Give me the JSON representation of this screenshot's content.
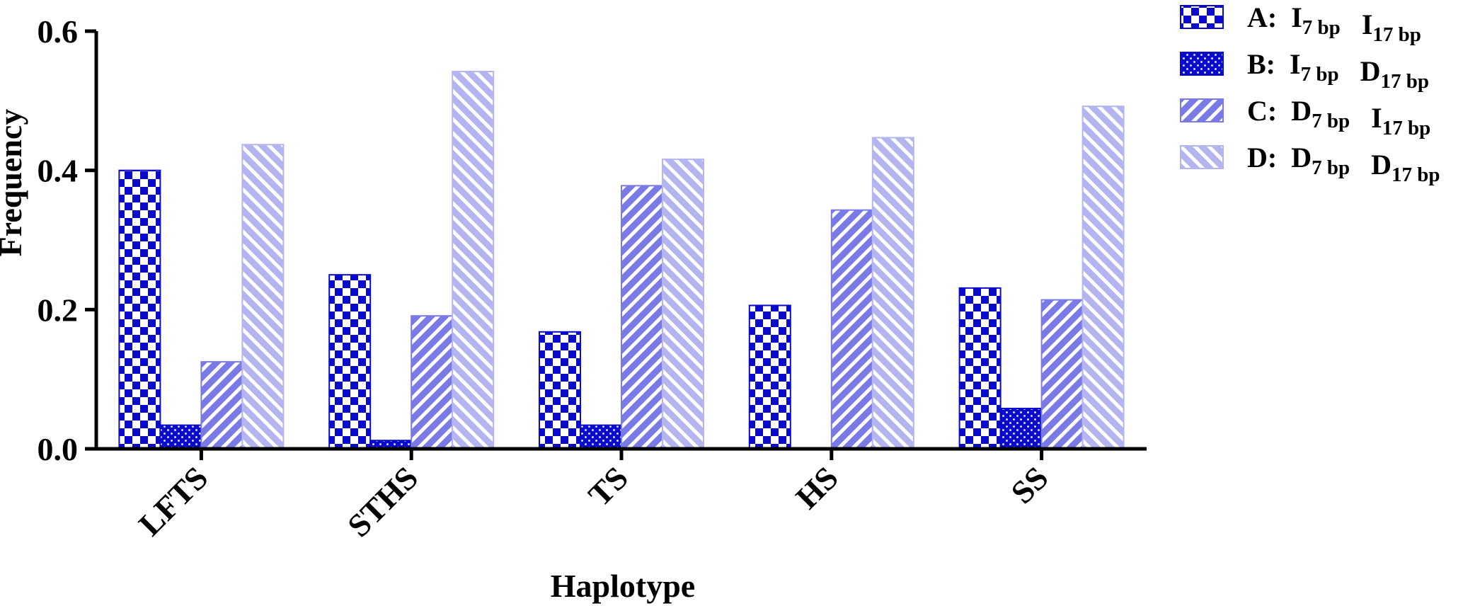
{
  "chart_data": {
    "type": "bar",
    "title": "",
    "xlabel": "Haplotype",
    "ylabel": "Frequency",
    "ylim": [
      0,
      0.6
    ],
    "yticks": [
      "0.0",
      "0.2",
      "0.4",
      "0.6"
    ],
    "categories": [
      "LFTS",
      "STHS",
      "TS",
      "HS",
      "SS"
    ],
    "series": [
      {
        "id": "A",
        "letter": "A:",
        "m1": "I",
        "s1": "7 bp",
        "m2": "I",
        "s2": "17 bp",
        "pattern": "checker",
        "color": "#0a0acc",
        "values": [
          0.4,
          0.25,
          0.168,
          0.206,
          0.231
        ]
      },
      {
        "id": "B",
        "letter": "B:",
        "m1": "I",
        "s1": "7 bp",
        "m2": "D",
        "s2": "17 bp",
        "pattern": "dots",
        "color": "#0a0acc",
        "values": [
          0.034,
          0.012,
          0.034,
          0.0,
          0.058
        ]
      },
      {
        "id": "C",
        "letter": "C:",
        "m1": "D",
        "s1": "7 bp",
        "m2": "I",
        "s2": "17 bp",
        "pattern": "diag-up",
        "color": "#7a7ae6",
        "values": [
          0.125,
          0.191,
          0.378,
          0.343,
          0.214
        ]
      },
      {
        "id": "D",
        "letter": "D:",
        "m1": "D",
        "s1": "7 bp",
        "m2": "D",
        "s2": "17 bp",
        "pattern": "diag-down",
        "color": "#b4b4f0",
        "values": [
          0.437,
          0.542,
          0.416,
          0.447,
          0.492
        ]
      }
    ],
    "grid": false,
    "legend_position": "top-right"
  }
}
